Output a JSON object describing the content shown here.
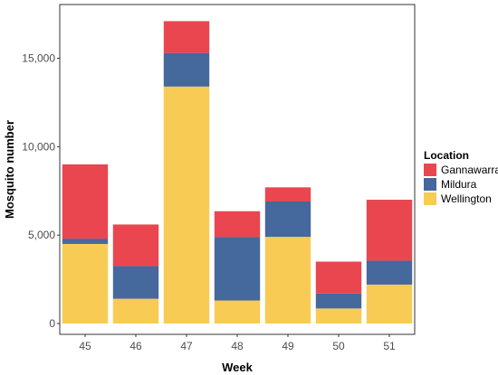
{
  "chart_data": {
    "type": "bar",
    "stacked": true,
    "title": "",
    "xlabel": "Week",
    "ylabel": "Mosquito number",
    "categories": [
      "45",
      "46",
      "47",
      "48",
      "49",
      "50",
      "51"
    ],
    "series": [
      {
        "name": "Wellington",
        "color": "#F8CB55",
        "values": [
          4500,
          1400,
          13400,
          1300,
          4900,
          850,
          2200
        ]
      },
      {
        "name": "Mildura",
        "color": "#45689D",
        "values": [
          300,
          1850,
          1900,
          3600,
          2000,
          850,
          1350
        ]
      },
      {
        "name": "Gannawarra",
        "color": "#E94650",
        "values": [
          4200,
          2350,
          1800,
          1450,
          800,
          1800,
          3450
        ]
      }
    ],
    "ylim": [
      0,
      17500
    ],
    "yticks": [
      0,
      5000,
      10000,
      15000
    ],
    "ytick_labels": [
      "0",
      "5,000",
      "10,000",
      "15,000"
    ],
    "grid": false,
    "legend": {
      "title": "Location",
      "position": "right",
      "order": [
        "Gannawarra",
        "Mildura",
        "Wellington"
      ]
    }
  }
}
